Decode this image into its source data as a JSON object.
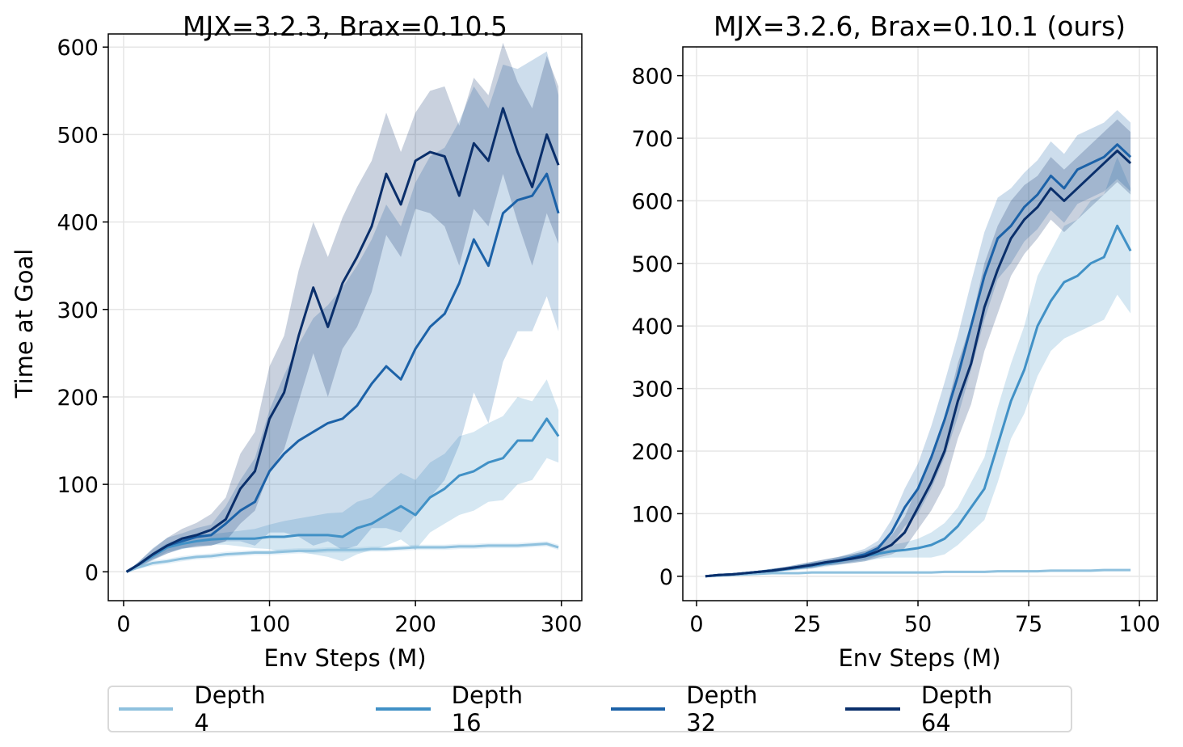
{
  "legend": {
    "placement": "bottom-center",
    "items": [
      "Depth 4",
      "Depth 16",
      "Depth 32",
      "Depth 64"
    ]
  },
  "colors": {
    "Depth 4": "#8fc1de",
    "Depth 16": "#4191c6",
    "Depth 32": "#1c62a8",
    "Depth 64": "#0a2f6b"
  },
  "chart_data": [
    {
      "type": "line",
      "title": "MJX=3.2.3, Brax=0.10.5",
      "xlabel": "Env Steps (M)",
      "ylabel": "Time at Goal",
      "xlim": [
        -10.5,
        314
      ],
      "ylim": [
        -33,
        615
      ],
      "xticks": [
        0,
        100,
        200,
        300
      ],
      "yticks": [
        0,
        100,
        200,
        300,
        400,
        500,
        600
      ],
      "grid": true,
      "x": [
        2,
        10,
        20,
        30,
        40,
        50,
        60,
        70,
        80,
        90,
        100,
        110,
        120,
        130,
        140,
        150,
        160,
        170,
        180,
        190,
        200,
        210,
        220,
        230,
        240,
        250,
        260,
        270,
        280,
        290,
        298
      ],
      "series": [
        {
          "name": "Depth 4",
          "values": [
            0,
            5,
            10,
            12,
            15,
            17,
            18,
            20,
            21,
            22,
            22,
            23,
            24,
            24,
            25,
            25,
            25,
            26,
            26,
            27,
            28,
            28,
            28,
            29,
            29,
            30,
            30,
            30,
            31,
            32,
            28
          ],
          "std": [
            0,
            2,
            3,
            3,
            3,
            3,
            3,
            3,
            3,
            3,
            3,
            3,
            3,
            3,
            3,
            3,
            3,
            3,
            3,
            3,
            3,
            3,
            3,
            3,
            3,
            3,
            3,
            3,
            3,
            3,
            3
          ]
        },
        {
          "name": "Depth 16",
          "values": [
            0,
            8,
            18,
            28,
            32,
            35,
            37,
            38,
            38,
            38,
            40,
            40,
            42,
            42,
            42,
            40,
            50,
            55,
            65,
            75,
            65,
            85,
            95,
            110,
            115,
            125,
            130,
            150,
            150,
            175,
            155
          ],
          "std": [
            0,
            2,
            4,
            5,
            6,
            6,
            6,
            7,
            9,
            11,
            14,
            18,
            19,
            22,
            25,
            28,
            30,
            30,
            35,
            38,
            40,
            40,
            40,
            45,
            45,
            45,
            48,
            50,
            45,
            45,
            30
          ]
        },
        {
          "name": "Depth 32",
          "values": [
            0,
            8,
            20,
            30,
            35,
            40,
            42,
            55,
            70,
            80,
            115,
            135,
            150,
            160,
            170,
            175,
            190,
            215,
            235,
            220,
            255,
            280,
            295,
            330,
            380,
            350,
            410,
            425,
            430,
            455,
            410
          ],
          "std": [
            0,
            3,
            7,
            9,
            9,
            10,
            12,
            20,
            35,
            50,
            70,
            90,
            110,
            130,
            135,
            150,
            160,
            165,
            185,
            175,
            190,
            195,
            190,
            185,
            175,
            180,
            170,
            150,
            155,
            140,
            135
          ]
        },
        {
          "name": "Depth 64",
          "values": [
            0,
            8,
            20,
            30,
            38,
            42,
            48,
            60,
            95,
            115,
            175,
            205,
            270,
            325,
            280,
            330,
            360,
            395,
            455,
            420,
            470,
            480,
            475,
            430,
            490,
            470,
            530,
            480,
            440,
            500,
            465
          ],
          "std": [
            0,
            3,
            6,
            9,
            11,
            14,
            18,
            25,
            40,
            45,
            60,
            65,
            75,
            75,
            80,
            75,
            80,
            75,
            70,
            60,
            55,
            70,
            80,
            80,
            75,
            75,
            75,
            80,
            90,
            90,
            90
          ]
        }
      ]
    },
    {
      "type": "line",
      "title": "MJX=3.2.6, Brax=0.10.1 (ours)",
      "xlabel": "Env Steps (M)",
      "ylabel": "",
      "xlim": [
        -3.1,
        104
      ],
      "ylim": [
        -39,
        846
      ],
      "xticks": [
        0,
        25,
        50,
        75,
        100
      ],
      "yticks": [
        0,
        100,
        200,
        300,
        400,
        500,
        600,
        700,
        800
      ],
      "grid": true,
      "x": [
        2,
        5,
        8,
        11,
        14,
        17,
        20,
        23,
        26,
        29,
        32,
        35,
        38,
        41,
        44,
        47,
        50,
        53,
        56,
        59,
        62,
        65,
        68,
        71,
        74,
        77,
        80,
        83,
        86,
        89,
        92,
        95,
        98
      ],
      "series": [
        {
          "name": "Depth 4",
          "values": [
            0,
            1,
            2,
            3,
            4,
            5,
            5,
            5,
            6,
            6,
            6,
            6,
            6,
            6,
            6,
            6,
            6,
            6,
            7,
            7,
            7,
            7,
            8,
            8,
            8,
            8,
            9,
            9,
            9,
            9,
            10,
            10,
            10
          ],
          "std": [
            0,
            1,
            1,
            1,
            2,
            2,
            2,
            2,
            2,
            2,
            2,
            2,
            2,
            2,
            2,
            2,
            2,
            2,
            2,
            2,
            2,
            2,
            2,
            2,
            2,
            2,
            2,
            2,
            2,
            2,
            2,
            2,
            2
          ]
        },
        {
          "name": "Depth 16",
          "values": [
            0,
            2,
            3,
            5,
            7,
            9,
            11,
            14,
            17,
            20,
            24,
            28,
            32,
            36,
            40,
            42,
            45,
            50,
            60,
            80,
            110,
            140,
            210,
            280,
            330,
            400,
            440,
            470,
            480,
            500,
            510,
            560,
            520
          ],
          "std": [
            0,
            1,
            1,
            2,
            2,
            3,
            3,
            4,
            5,
            5,
            6,
            7,
            8,
            8,
            10,
            12,
            15,
            20,
            25,
            30,
            40,
            50,
            60,
            60,
            70,
            80,
            80,
            90,
            90,
            100,
            100,
            110,
            100
          ]
        },
        {
          "name": "Depth 32",
          "values": [
            0,
            2,
            3,
            5,
            7,
            9,
            12,
            15,
            18,
            22,
            25,
            30,
            35,
            45,
            70,
            110,
            140,
            190,
            250,
            320,
            400,
            480,
            540,
            560,
            590,
            610,
            640,
            620,
            650,
            660,
            670,
            690,
            670
          ],
          "std": [
            0,
            1,
            1,
            2,
            2,
            3,
            3,
            4,
            5,
            5,
            6,
            7,
            9,
            12,
            20,
            30,
            40,
            50,
            60,
            65,
            70,
            70,
            65,
            60,
            55,
            55,
            55,
            55,
            55,
            55,
            55,
            55,
            55
          ]
        },
        {
          "name": "Depth 64",
          "values": [
            0,
            2,
            3,
            5,
            7,
            9,
            12,
            15,
            18,
            22,
            25,
            28,
            32,
            40,
            50,
            70,
            110,
            150,
            200,
            280,
            340,
            430,
            490,
            540,
            570,
            590,
            620,
            600,
            620,
            640,
            660,
            680,
            660
          ],
          "std": [
            0,
            1,
            1,
            2,
            2,
            3,
            3,
            4,
            5,
            5,
            6,
            7,
            8,
            10,
            15,
            25,
            35,
            45,
            55,
            60,
            65,
            70,
            70,
            60,
            55,
            50,
            50,
            50,
            50,
            50,
            50,
            50,
            50
          ]
        }
      ]
    }
  ]
}
